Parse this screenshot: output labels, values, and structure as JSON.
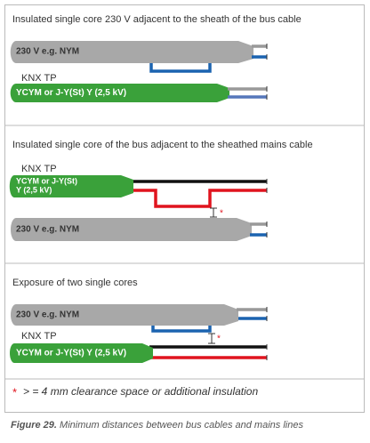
{
  "sections": [
    {
      "title": "Insulated single core 230 V adjacent to the sheath of the bus cable",
      "mains_label": "230 V e.g. NYM",
      "bus_label": "KNX TP",
      "bus_cable": "YCYM or J-Y(St) Y (2,5 kV)"
    },
    {
      "title": "Insulated single core of the bus adjacent to the sheathed mains cable",
      "bus_label": "KNX TP",
      "bus_cable": [
        "YCYM or J-Y(St)",
        "Y (2,5 kV)"
      ],
      "mains_label": "230 V e.g. NYM",
      "marker": "*"
    },
    {
      "title": "Exposure of two single cores",
      "mains_label": "230 V e.g. NYM",
      "bus_label": "KNX TP",
      "bus_cable": "YCYM or J-Y(St) Y (2,5 kV)",
      "marker": "*"
    }
  ],
  "note": {
    "marker": "*",
    "text": "> = 4 mm clearance space or additional insulation"
  },
  "caption": {
    "label": "Figure 29.",
    "text": "Minimum distances between bus cables and mains lines"
  }
}
